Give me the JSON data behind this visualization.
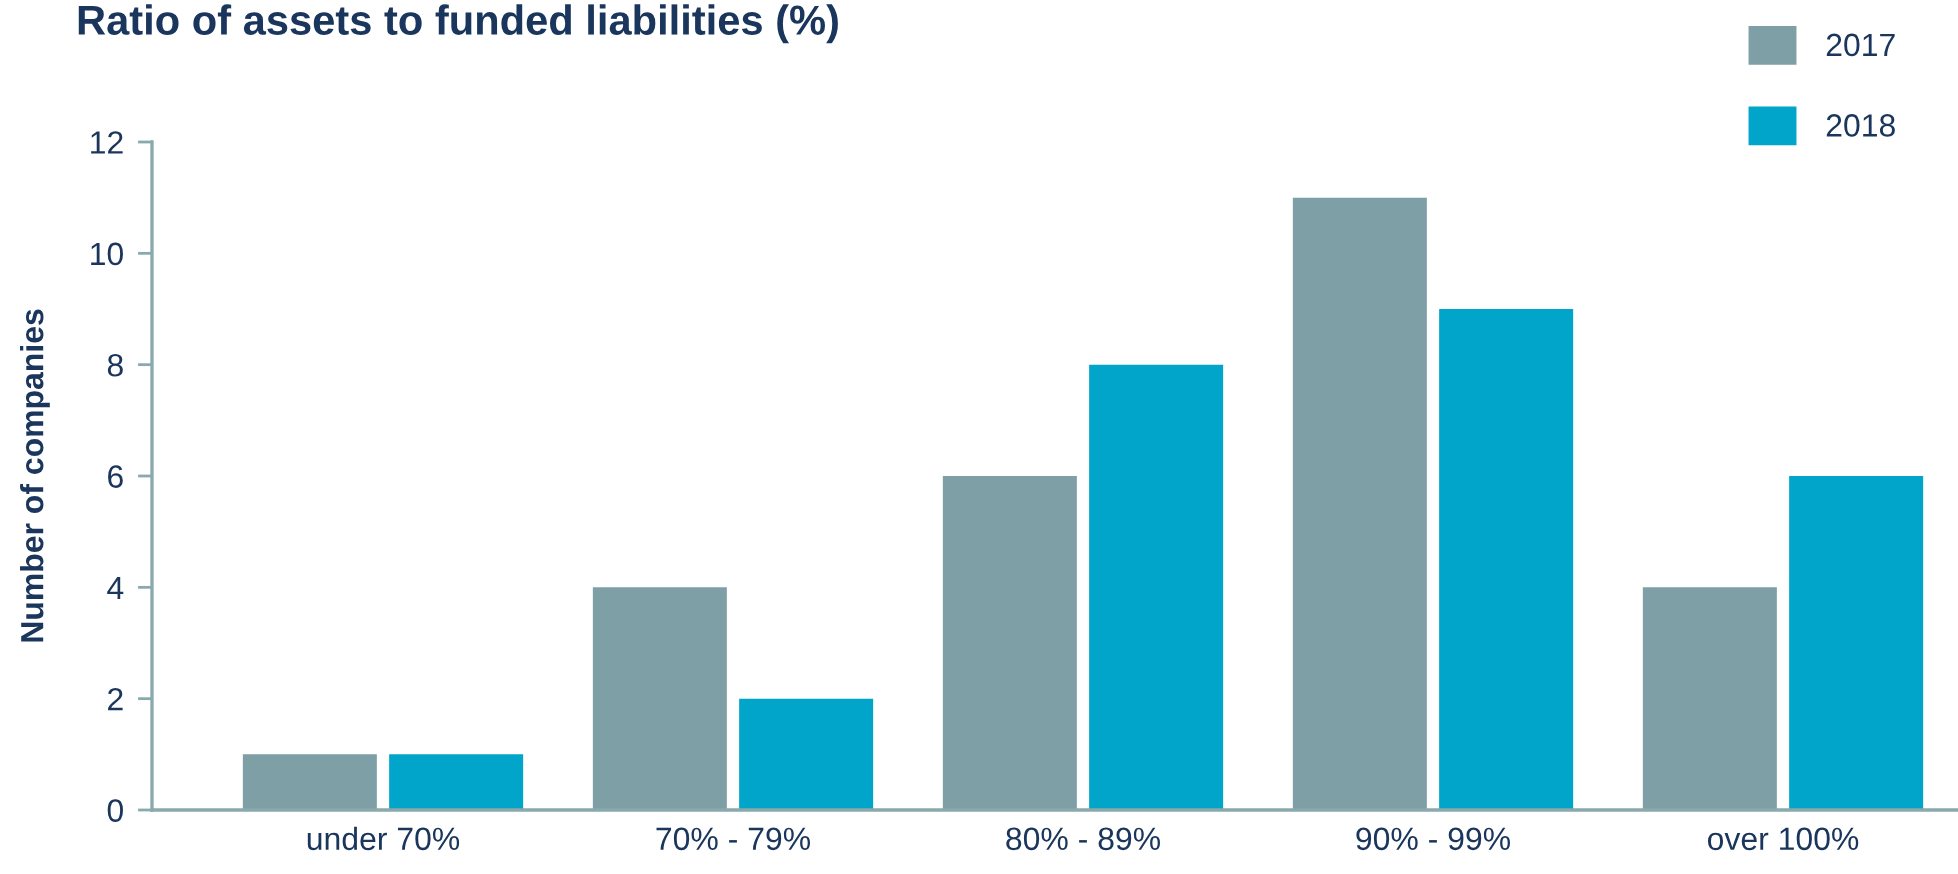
{
  "chart_data": {
    "type": "bar",
    "title": "Ratio of assets to funded liabilities (%)",
    "ylabel": "Number of companies",
    "categories": [
      "under 70%",
      "70% - 79%",
      "80% - 89%",
      "90% - 99%",
      "over 100%"
    ],
    "series": [
      {
        "name": "2017",
        "color": "#7d9fa5",
        "values": [
          1,
          4,
          6,
          11,
          4
        ]
      },
      {
        "name": "2018",
        "color": "#00a5c9",
        "values": [
          1,
          2,
          8,
          9,
          6
        ]
      }
    ],
    "ylim": [
      0,
      12
    ],
    "yticks": [
      0,
      2,
      4,
      6,
      8,
      10,
      12
    ],
    "legend": "top right"
  }
}
